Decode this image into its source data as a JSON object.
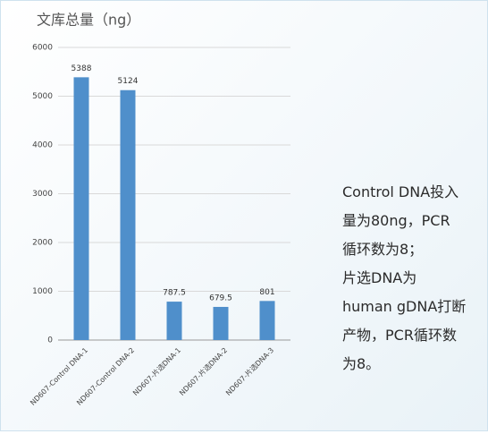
{
  "chart_data": {
    "type": "bar",
    "title": "文库总量（ng）",
    "categories": [
      "ND607-Control DNA-1",
      "ND607-Control DNA-2",
      "ND607-片选DNA-1",
      "ND607-片选DNA-2",
      "ND607-片选DNA-3"
    ],
    "values": [
      5388,
      5124,
      787.5,
      679.5,
      801
    ],
    "color": "#4f8fcb",
    "ylim": [
      0,
      6000
    ],
    "yticks": [
      0,
      1000,
      2000,
      3000,
      4000,
      5000,
      6000
    ],
    "grid": true,
    "annotation": [
      "Control DNA投入",
      "量为80ng，PCR",
      "循环数为8；",
      "片选DNA为",
      "human gDNA打断",
      "产物，PCR循环数",
      "为8。"
    ]
  }
}
